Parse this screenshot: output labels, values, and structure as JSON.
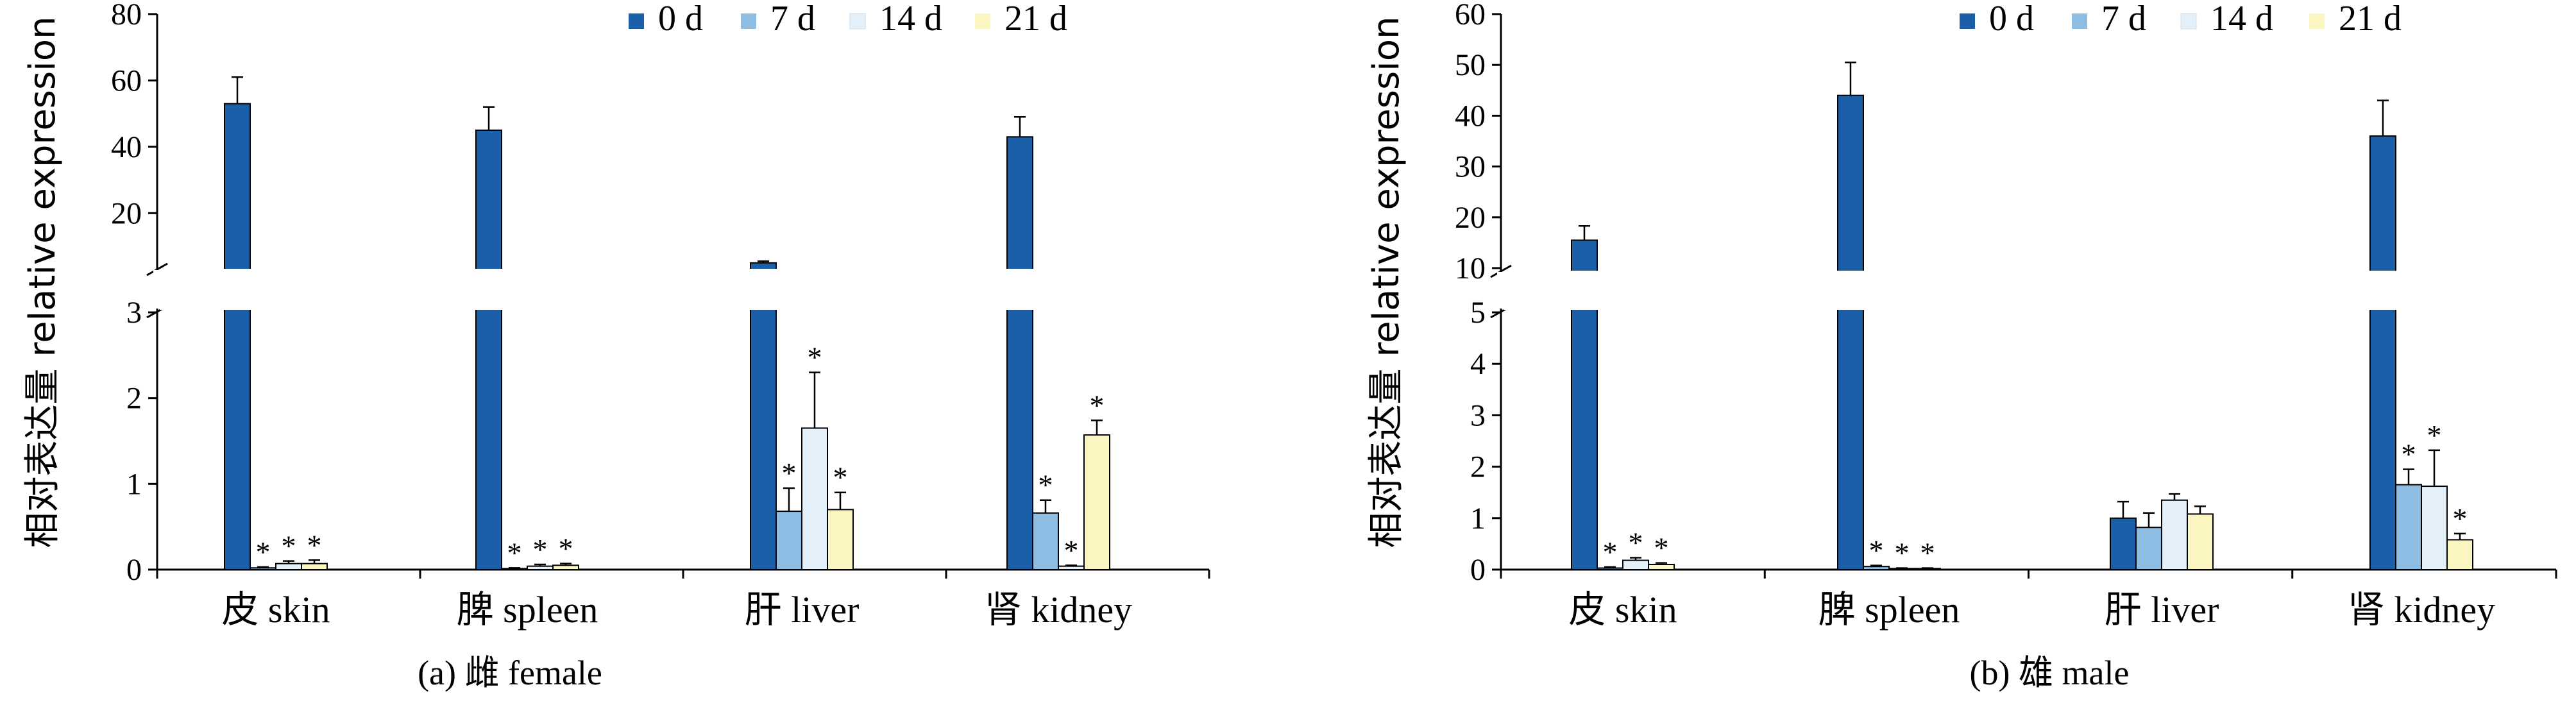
{
  "colors": {
    "0 d": "#1a5fa8",
    "7 d": "#8dbde2",
    "14 d": "#e4f0f9",
    "21 d": "#fbf6c1",
    "axis": "#000000"
  },
  "chart_data": [
    {
      "type": "bar",
      "panel_id": "a",
      "caption": "(a) 雌 female",
      "ylabel": "相对表达量 relative expression",
      "categories": [
        "皮 skin",
        "脾 spleen",
        "肝 liver",
        "肾 kidney"
      ],
      "legend": [
        "0 d",
        "7 d",
        "14 d",
        "21 d"
      ],
      "legend_position": "top-right",
      "broken_axis": true,
      "lower_ylim": [
        0,
        3
      ],
      "lower_ticks": [
        "0",
        "1",
        "2",
        "3"
      ],
      "upper_ylim": [
        4,
        80
      ],
      "upper_ticks": [
        "20",
        "40",
        "60",
        "80"
      ],
      "series": [
        {
          "name": "0 d",
          "values": [
            53,
            45,
            5,
            43
          ],
          "errors": [
            8,
            7,
            0.5,
            6
          ],
          "sig": [
            "",
            "",
            "",
            ""
          ]
        },
        {
          "name": "7 d",
          "values": [
            0.02,
            0.01,
            0.68,
            0.66
          ],
          "errors": [
            0.01,
            0.01,
            0.27,
            0.15
          ],
          "sig": [
            "*",
            "*",
            "*",
            "*"
          ]
        },
        {
          "name": "14 d",
          "values": [
            0.07,
            0.04,
            1.65,
            0.04
          ],
          "errors": [
            0.03,
            0.02,
            0.65,
            0.01
          ],
          "sig": [
            "*",
            "*",
            "*",
            "*"
          ]
        },
        {
          "name": "21 d",
          "values": [
            0.07,
            0.05,
            0.7,
            1.57
          ],
          "errors": [
            0.04,
            0.02,
            0.2,
            0.17
          ],
          "sig": [
            "*",
            "*",
            "*",
            "*"
          ]
        }
      ]
    },
    {
      "type": "bar",
      "panel_id": "b",
      "caption": "(b) 雄 male",
      "ylabel": "相对表达量 relative expression",
      "categories": [
        "皮 skin",
        "脾 spleen",
        "肝 liver",
        "肾 kidney"
      ],
      "legend": [
        "0 d",
        "7 d",
        "14 d",
        "21 d"
      ],
      "legend_position": "top-right",
      "broken_axis": true,
      "lower_ylim": [
        0,
        5
      ],
      "lower_ticks": [
        "0",
        "1",
        "2",
        "3",
        "4",
        "5"
      ],
      "upper_ylim": [
        10,
        60
      ],
      "upper_ticks": [
        "10",
        "20",
        "30",
        "40",
        "50",
        "60"
      ],
      "series": [
        {
          "name": "0 d",
          "values": [
            15.5,
            44,
            1.0,
            36
          ],
          "errors": [
            2.8,
            6.5,
            0.32,
            7
          ],
          "sig": [
            "",
            "",
            "",
            ""
          ]
        },
        {
          "name": "7 d",
          "values": [
            0.03,
            0.06,
            0.82,
            1.65
          ],
          "errors": [
            0.02,
            0.02,
            0.28,
            0.3
          ],
          "sig": [
            "*",
            "*",
            "",
            "*"
          ]
        },
        {
          "name": "14 d",
          "values": [
            0.18,
            0.02,
            1.35,
            1.62
          ],
          "errors": [
            0.05,
            0.01,
            0.12,
            0.7
          ],
          "sig": [
            "*",
            "*",
            "",
            "*"
          ]
        },
        {
          "name": "21 d",
          "values": [
            0.1,
            0.02,
            1.08,
            0.58
          ],
          "errors": [
            0.03,
            0.01,
            0.15,
            0.12
          ],
          "sig": [
            "*",
            "*",
            "",
            "*"
          ]
        }
      ]
    }
  ]
}
